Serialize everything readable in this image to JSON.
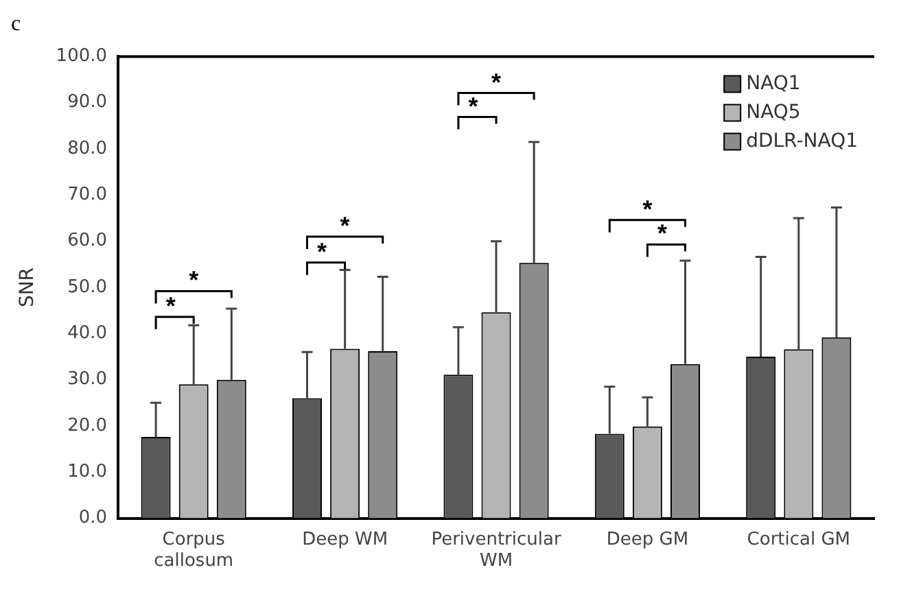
{
  "chart_data": {
    "type": "bar",
    "title": "c",
    "ylabel": "SNR",
    "categories": [
      "Corpus callosum",
      "Deep WM",
      "Periventricular WM",
      "Deep GM",
      "Cortical GM"
    ],
    "series": [
      {
        "name": "NAQ1",
        "color": "#595959",
        "values": [
          17.6,
          26.0,
          31.1,
          18.3,
          35.0
        ],
        "errors": [
          [
            17.6,
            25.0
          ],
          [
            26.0,
            36.0
          ],
          [
            31.1,
            41.4
          ],
          [
            18.3,
            28.5
          ],
          [
            35.0,
            56.6
          ]
        ]
      },
      {
        "name": "NAQ5",
        "color": "#b4b4b4",
        "values": [
          29.0,
          36.7,
          44.6,
          19.9,
          36.6
        ],
        "errors": [
          [
            29.0,
            41.8
          ],
          [
            36.7,
            53.8
          ],
          [
            44.6,
            60.0
          ],
          [
            19.9,
            26.2
          ],
          [
            36.6,
            65.0
          ]
        ]
      },
      {
        "name": "dDLR-NAQ1",
        "color": "#8c8c8c",
        "values": [
          30.0,
          36.2,
          55.3,
          33.4,
          39.2
        ],
        "errors": [
          [
            30.0,
            45.4
          ],
          [
            36.2,
            52.3
          ],
          [
            55.3,
            81.5
          ],
          [
            33.4,
            55.8
          ],
          [
            39.2,
            67.3
          ]
        ]
      }
    ],
    "ylim": [
      0,
      100
    ],
    "yticks": [
      {
        "value": 0,
        "label": "0.0"
      },
      {
        "value": 10,
        "label": "10.0"
      },
      {
        "value": 20,
        "label": "20.0"
      },
      {
        "value": 30,
        "label": "30.0"
      },
      {
        "value": 40,
        "label": "40.0"
      },
      {
        "value": 50,
        "label": "50.0"
      },
      {
        "value": 60,
        "label": "60.0"
      },
      {
        "value": 70,
        "label": "70.0"
      },
      {
        "value": 80,
        "label": "80.0"
      },
      {
        "value": 90,
        "label": "90.0"
      },
      {
        "value": 100,
        "label": "100.0"
      }
    ],
    "grid": false,
    "legend": "top right",
    "annotations": [
      "*",
      "*",
      "*",
      "*",
      "*",
      "*",
      "*",
      "*"
    ]
  }
}
